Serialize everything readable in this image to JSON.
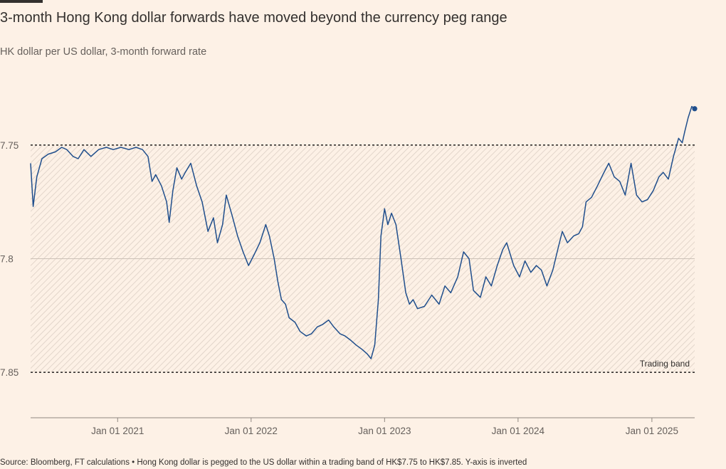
{
  "header": {
    "title": "3-month Hong Kong dollar forwards have moved beyond the currency peg range",
    "subtitle": "HK dollar per US dollar, 3-month forward rate"
  },
  "footer": {
    "source": "Source: Bloomberg, FT calculations • Hong Kong dollar is pegged to the US dollar within a trading band of HK$7.75 to HK$7.85. Y-axis is inverted"
  },
  "colors": {
    "background": "#fdf1e6",
    "line": "#1f4e8c",
    "grid": "#ccc1b7",
    "band_hatch": "#d8ccc2",
    "band_border": "#33302e"
  },
  "chart_data": {
    "type": "line",
    "title": "3-month Hong Kong dollar forwards have moved beyond the currency peg range",
    "ylabel": "HK dollar per US dollar, 3-month forward rate",
    "xlabel": "",
    "y_inverted": true,
    "ylim": [
      7.73,
      7.87
    ],
    "xlim": [
      "2020-05-08",
      "2025-04-28"
    ],
    "y_ticks": [
      7.75,
      7.8,
      7.85
    ],
    "y_tick_labels": [
      "7.75",
      "7.8",
      "7.85"
    ],
    "x_ticks": [
      "2021-01-01",
      "2022-01-01",
      "2023-01-01",
      "2024-01-01",
      "2025-01-01"
    ],
    "x_tick_labels": [
      "Jan 01 2021",
      "Jan 01 2022",
      "Jan 01 2023",
      "Jan 01 2024",
      "Jan 01 2025"
    ],
    "grid": true,
    "band": {
      "label": "Trading band",
      "low": 7.75,
      "high": 7.85
    },
    "series": [
      {
        "points": [
          [
            "2020-05-08",
            7.758
          ],
          [
            "2020-05-15",
            7.777
          ],
          [
            "2020-05-25",
            7.764
          ],
          [
            "2020-06-08",
            7.756
          ],
          [
            "2020-06-25",
            7.754
          ],
          [
            "2020-07-15",
            7.753
          ],
          [
            "2020-08-01",
            7.751
          ],
          [
            "2020-08-15",
            7.752
          ],
          [
            "2020-09-01",
            7.755
          ],
          [
            "2020-09-15",
            7.756
          ],
          [
            "2020-10-01",
            7.752
          ],
          [
            "2020-10-20",
            7.755
          ],
          [
            "2020-11-10",
            7.752
          ],
          [
            "2020-12-01",
            7.751
          ],
          [
            "2020-12-20",
            7.752
          ],
          [
            "2021-01-10",
            7.751
          ],
          [
            "2021-02-01",
            7.752
          ],
          [
            "2021-02-20",
            7.751
          ],
          [
            "2021-03-10",
            7.752
          ],
          [
            "2021-03-25",
            7.755
          ],
          [
            "2021-04-05",
            7.766
          ],
          [
            "2021-04-15",
            7.763
          ],
          [
            "2021-05-01",
            7.768
          ],
          [
            "2021-05-15",
            7.775
          ],
          [
            "2021-05-22",
            7.784
          ],
          [
            "2021-06-01",
            7.77
          ],
          [
            "2021-06-12",
            7.76
          ],
          [
            "2021-06-25",
            7.765
          ],
          [
            "2021-07-05",
            7.762
          ],
          [
            "2021-07-20",
            7.758
          ],
          [
            "2021-08-05",
            7.768
          ],
          [
            "2021-08-20",
            7.775
          ],
          [
            "2021-09-05",
            7.788
          ],
          [
            "2021-09-20",
            7.782
          ],
          [
            "2021-10-01",
            7.793
          ],
          [
            "2021-10-15",
            7.785
          ],
          [
            "2021-10-25",
            7.772
          ],
          [
            "2021-11-10",
            7.781
          ],
          [
            "2021-11-25",
            7.79
          ],
          [
            "2021-12-10",
            7.797
          ],
          [
            "2021-12-25",
            7.803
          ],
          [
            "2022-01-10",
            7.798
          ],
          [
            "2022-01-25",
            7.793
          ],
          [
            "2022-02-10",
            7.785
          ],
          [
            "2022-02-20",
            7.79
          ],
          [
            "2022-03-05",
            7.8
          ],
          [
            "2022-03-15",
            7.81
          ],
          [
            "2022-03-25",
            7.818
          ],
          [
            "2022-04-05",
            7.82
          ],
          [
            "2022-04-15",
            7.826
          ],
          [
            "2022-05-01",
            7.828
          ],
          [
            "2022-05-15",
            7.832
          ],
          [
            "2022-06-01",
            7.834
          ],
          [
            "2022-06-15",
            7.833
          ],
          [
            "2022-07-01",
            7.83
          ],
          [
            "2022-07-15",
            7.829
          ],
          [
            "2022-08-01",
            7.827
          ],
          [
            "2022-08-15",
            7.83
          ],
          [
            "2022-09-01",
            7.833
          ],
          [
            "2022-09-15",
            7.834
          ],
          [
            "2022-10-01",
            7.836
          ],
          [
            "2022-10-15",
            7.838
          ],
          [
            "2022-11-01",
            7.84
          ],
          [
            "2022-11-15",
            7.842
          ],
          [
            "2022-11-25",
            7.844
          ],
          [
            "2022-12-05",
            7.838
          ],
          [
            "2022-12-15",
            7.818
          ],
          [
            "2022-12-22",
            7.79
          ],
          [
            "2023-01-01",
            7.778
          ],
          [
            "2023-01-10",
            7.785
          ],
          [
            "2023-01-20",
            7.78
          ],
          [
            "2023-02-01",
            7.785
          ],
          [
            "2023-02-15",
            7.8
          ],
          [
            "2023-02-28",
            7.815
          ],
          [
            "2023-03-10",
            7.82
          ],
          [
            "2023-03-20",
            7.818
          ],
          [
            "2023-04-01",
            7.822
          ],
          [
            "2023-04-20",
            7.821
          ],
          [
            "2023-05-10",
            7.816
          ],
          [
            "2023-05-30",
            7.82
          ],
          [
            "2023-06-15",
            7.812
          ],
          [
            "2023-07-01",
            7.815
          ],
          [
            "2023-07-20",
            7.808
          ],
          [
            "2023-08-05",
            7.797
          ],
          [
            "2023-08-20",
            7.8
          ],
          [
            "2023-09-01",
            7.814
          ],
          [
            "2023-09-20",
            7.817
          ],
          [
            "2023-10-05",
            7.808
          ],
          [
            "2023-10-20",
            7.812
          ],
          [
            "2023-11-05",
            7.803
          ],
          [
            "2023-11-20",
            7.796
          ],
          [
            "2023-12-01",
            7.793
          ],
          [
            "2023-12-20",
            7.803
          ],
          [
            "2024-01-05",
            7.808
          ],
          [
            "2024-01-20",
            7.801
          ],
          [
            "2024-02-05",
            7.806
          ],
          [
            "2024-02-20",
            7.803
          ],
          [
            "2024-03-05",
            7.805
          ],
          [
            "2024-03-20",
            7.812
          ],
          [
            "2024-04-05",
            7.805
          ],
          [
            "2024-04-20",
            7.795
          ],
          [
            "2024-05-01",
            7.788
          ],
          [
            "2024-05-15",
            7.793
          ],
          [
            "2024-06-01",
            7.79
          ],
          [
            "2024-06-15",
            7.789
          ],
          [
            "2024-06-25",
            7.786
          ],
          [
            "2024-07-05",
            7.775
          ],
          [
            "2024-07-20",
            7.773
          ],
          [
            "2024-08-05",
            7.768
          ],
          [
            "2024-08-20",
            7.763
          ],
          [
            "2024-09-05",
            7.758
          ],
          [
            "2024-09-20",
            7.764
          ],
          [
            "2024-10-05",
            7.766
          ],
          [
            "2024-10-20",
            7.772
          ],
          [
            "2024-11-05",
            7.758
          ],
          [
            "2024-11-20",
            7.772
          ],
          [
            "2024-12-05",
            7.775
          ],
          [
            "2024-12-20",
            7.774
          ],
          [
            "2025-01-05",
            7.77
          ],
          [
            "2025-01-20",
            7.764
          ],
          [
            "2025-02-01",
            7.762
          ],
          [
            "2025-02-15",
            7.765
          ],
          [
            "2025-03-01",
            7.755
          ],
          [
            "2025-03-15",
            7.747
          ],
          [
            "2025-03-25",
            7.749
          ],
          [
            "2025-04-01",
            7.744
          ],
          [
            "2025-04-10",
            7.738
          ],
          [
            "2025-04-20",
            7.733
          ],
          [
            "2025-04-28",
            7.734
          ]
        ]
      }
    ]
  }
}
